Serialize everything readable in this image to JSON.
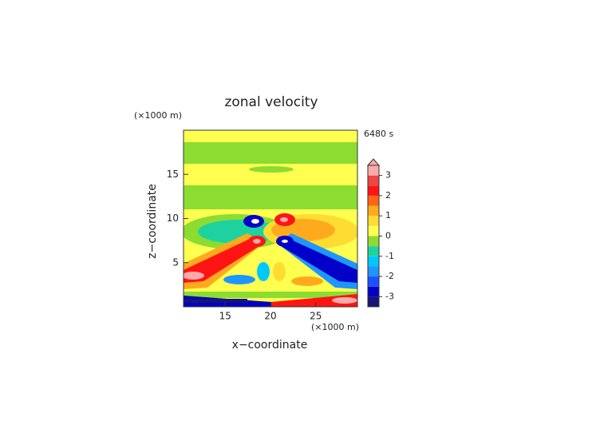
{
  "chart_data": {
    "type": "contour",
    "title": "zonal velocity",
    "x_label": "x−coordinate",
    "y_label": "z−coordinate",
    "x_unit": "(×1000 m)",
    "y_unit": "(×1000 m)",
    "time_label": "6480 s",
    "xlim": [
      10.4,
      29.6
    ],
    "ylim": [
      0,
      20
    ],
    "xticks": [
      15,
      20,
      25
    ],
    "yticks": [
      5,
      10,
      15
    ],
    "colorbar": {
      "bounds": [
        -3.5,
        -3,
        -2.5,
        -2,
        -1.5,
        -1,
        -0.5,
        0,
        0.5,
        1,
        1.5,
        2,
        2.5,
        3,
        3.5
      ],
      "colors": [
        "#14147a",
        "#0000c8",
        "#1e50ff",
        "#1e96ff",
        "#00c8ff",
        "#1ed2a0",
        "#8cdc32",
        "#ffff50",
        "#ffdc32",
        "#ffaa1e",
        "#ff6414",
        "#ff1414",
        "#ee4646",
        "#ffaaaa"
      ],
      "ticks": [
        -3,
        -2,
        -1,
        0,
        1,
        2,
        3
      ],
      "extend": "max"
    }
  }
}
